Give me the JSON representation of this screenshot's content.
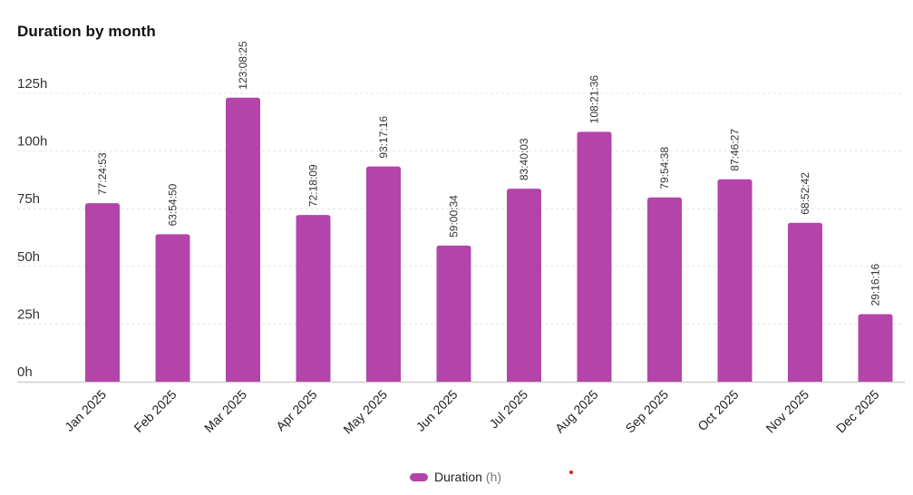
{
  "chart_data": {
    "type": "bar",
    "title": "Duration by month",
    "xlabel": "",
    "ylabel": "",
    "unit_suffix": "h",
    "ylim": [
      0,
      125
    ],
    "yticks": [
      0,
      25,
      50,
      75,
      100,
      125
    ],
    "grid": true,
    "categories": [
      "Jan 2025",
      "Feb 2025",
      "Mar 2025",
      "Apr 2025",
      "May 2025",
      "Jun 2025",
      "Jul 2025",
      "Aug 2025",
      "Sep 2025",
      "Oct 2025",
      "Nov 2025",
      "Dec 2025"
    ],
    "series": [
      {
        "name": "Duration",
        "unit_label": "(h)",
        "color": "#b444aa",
        "values": [
          77.41,
          63.91,
          123.14,
          72.3,
          93.29,
          59.01,
          83.67,
          108.36,
          79.91,
          87.77,
          68.88,
          29.27
        ],
        "labels": [
          "77:24:53",
          "63:54:50",
          "123:08:25",
          "72:18:09",
          "93:17:16",
          "59:00:34",
          "83:40:03",
          "108:21:36",
          "79:54:38",
          "87:46:27",
          "68:52:42",
          "29:16:16"
        ]
      }
    ],
    "legend_position": "bottom-center"
  },
  "colors": {
    "bar": "#b444aa",
    "grid": "#e4e4e4",
    "axis": "#cfcfcf",
    "tick_text": "#333333",
    "marker_dot": "#e0201b"
  }
}
